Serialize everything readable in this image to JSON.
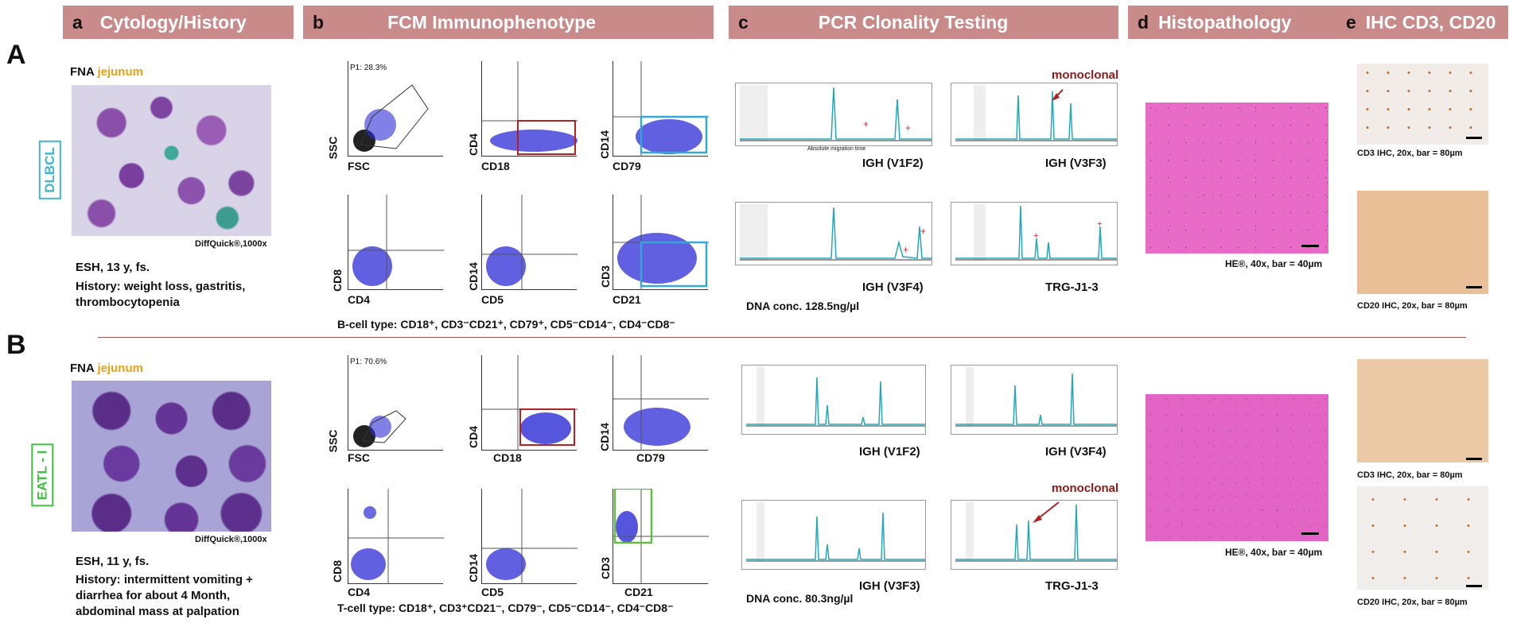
{
  "headers": [
    {
      "letter": "a",
      "title": "Cytology/History"
    },
    {
      "letter": "b",
      "title": "FCM Immunophenotype"
    },
    {
      "letter": "c",
      "title": "PCR Clonality Testing"
    },
    {
      "letter": "d",
      "title": "Histopathology"
    },
    {
      "letter": "e",
      "title": "IHC CD3, CD20"
    }
  ],
  "rowA": {
    "label": "A",
    "fna": "FNA",
    "site": "jejunum",
    "diagnosis": "DLBCL",
    "stain_caption": "DiffQuick®,1000x",
    "patient": "ESH, 13 y, fs.",
    "history": "History: weight loss, gastritis, thrombocytopenia",
    "p1": "P1: 28.3%",
    "flow_axes": [
      {
        "y": "SSC",
        "x": "FSC"
      },
      {
        "y": "CD4",
        "x": "CD18"
      },
      {
        "y": "CD14",
        "x": "CD79"
      },
      {
        "y": "CD8",
        "x": "CD4"
      },
      {
        "y": "CD14",
        "x": "CD5"
      },
      {
        "y": "CD3",
        "x": "CD21"
      }
    ],
    "phenotype": "B-cell type: CD18⁺, CD3⁻CD21⁺, CD79⁺, CD5⁻CD14⁻, CD4⁻CD8⁻",
    "pcr": [
      "IGH (V1F2)",
      "IGH (V3F3)",
      "IGH (V3F4)",
      "TRG-J1-3"
    ],
    "monoclonal": "monoclonal",
    "dna": "DNA conc. 128.5ng/µl",
    "he_caption": "HE®, 40x, bar = 40µm",
    "ihc1": "CD3 IHC, 20x, bar = 80µm",
    "ihc2": "CD20 IHC, 20x, bar = 80µm",
    "pcr_axis_label": "Absolute migration time"
  },
  "rowB": {
    "label": "B",
    "fna": "FNA",
    "site": "jejunum",
    "diagnosis": "EATL - I",
    "stain_caption": "DiffQuick®,1000x",
    "patient": "ESH, 11 y, fs.",
    "history": "History: intermittent vomiting + diarrhea for about 4 Month, abdominal mass at palpation",
    "p1": "P1: 70.6%",
    "flow_axes": [
      {
        "y": "SSC",
        "x": "FSC"
      },
      {
        "y": "CD4",
        "x": "CD18"
      },
      {
        "y": "CD14",
        "x": "CD79"
      },
      {
        "y": "CD8",
        "x": "CD4"
      },
      {
        "y": "CD14",
        "x": "CD5"
      },
      {
        "y": "CD3",
        "x": "CD21"
      }
    ],
    "phenotype": "T-cell type: CD18⁺, CD3⁺CD21⁻, CD79⁻, CD5⁻CD14⁻, CD4⁻CD8⁻",
    "pcr": [
      "IGH (V1F2)",
      "IGH (V3F4)",
      "IGH (V3F3)",
      "TRG-J1-3"
    ],
    "monoclonal": "monoclonal",
    "dna": "DNA conc. 80.3ng/µl",
    "he_caption": "HE®, 40x, bar = 40µm",
    "ihc1": "CD3 IHC, 20x, bar = 80µm",
    "ihc2": "CD20 IHC, 20x, bar = 80µm"
  },
  "colors": {
    "header": "#c98a8a",
    "dlbcl": "#3fb7cf",
    "eatl": "#3fbf3f",
    "gate_red": "#b22222",
    "gate_cyan": "#33a8d8",
    "gate_green": "#66bb44",
    "dots": "#2b2bd6"
  }
}
